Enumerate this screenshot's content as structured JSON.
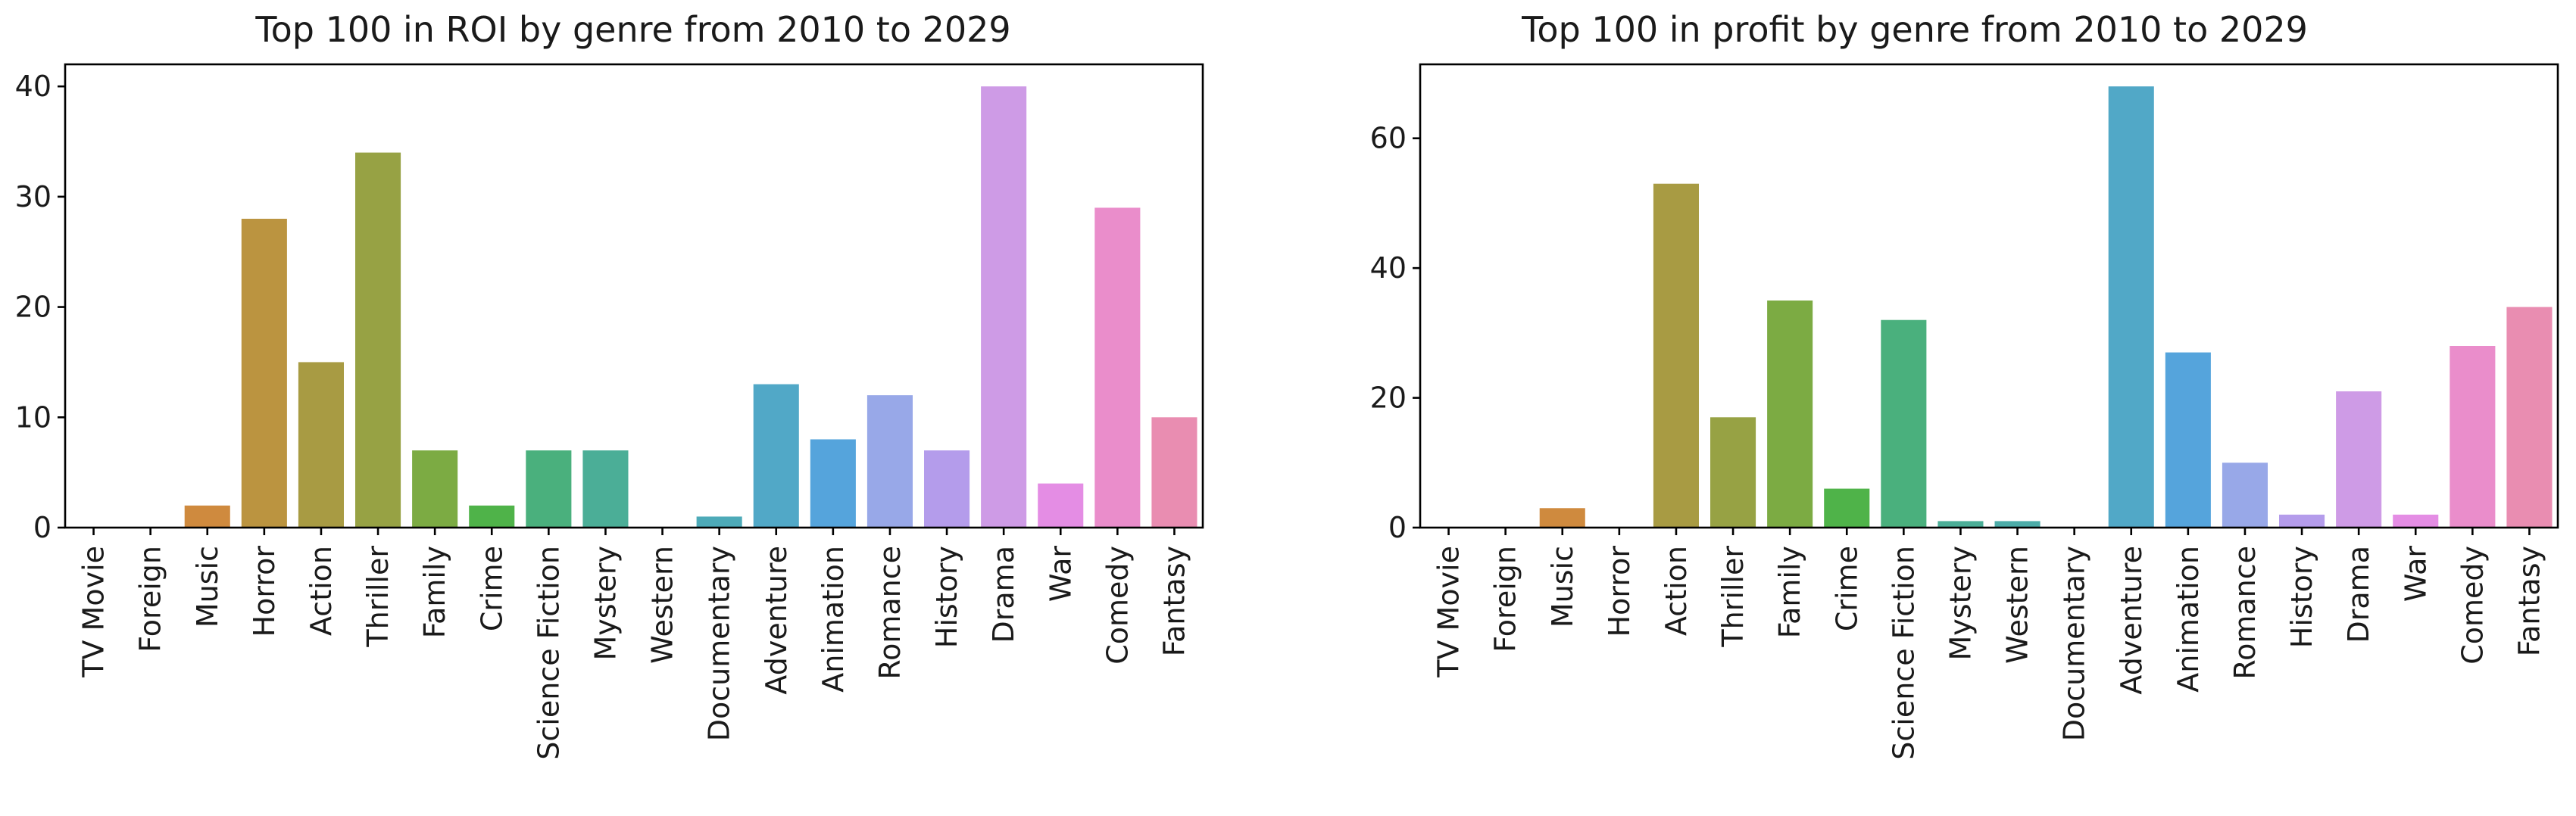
{
  "chart_data": [
    {
      "type": "bar",
      "title": "Top 100 in ROI by genre from 2010 to 2029",
      "xlabel": "",
      "ylabel": "",
      "ylim": [
        0,
        42
      ],
      "yticks": [
        0,
        10,
        20,
        30,
        40
      ],
      "grid": false,
      "categories": [
        "TV Movie",
        "Foreign",
        "Music",
        "Horror",
        "Action",
        "Thriller",
        "Family",
        "Crime",
        "Science Fiction",
        "Mystery",
        "Western",
        "Documentary",
        "Adventure",
        "Animation",
        "Romance",
        "History",
        "Drama",
        "War",
        "Comedy",
        "Fantasy"
      ],
      "values": [
        0,
        0,
        2,
        28,
        15,
        34,
        7,
        2,
        7,
        7,
        0,
        1,
        13,
        8,
        12,
        7,
        40,
        4,
        29,
        10
      ]
    },
    {
      "type": "bar",
      "title": "Top 100 in profit by genre from 2010 to 2029",
      "xlabel": "",
      "ylabel": "",
      "ylim": [
        0,
        71.4
      ],
      "yticks": [
        0,
        20,
        40,
        60
      ],
      "grid": false,
      "categories": [
        "TV Movie",
        "Foreign",
        "Music",
        "Horror",
        "Action",
        "Thriller",
        "Family",
        "Crime",
        "Science Fiction",
        "Mystery",
        "Western",
        "Documentary",
        "Adventure",
        "Animation",
        "Romance",
        "History",
        "Drama",
        "War",
        "Comedy",
        "Fantasy"
      ],
      "values": [
        0,
        0,
        3,
        0,
        53,
        17,
        35,
        6,
        32,
        1,
        1,
        0,
        68,
        27,
        10,
        2,
        21,
        2,
        28,
        34
      ]
    }
  ],
  "genre_colors": {
    "TV Movie": "#f77189",
    "Foreign": "#e5805c",
    "Music": "#cf8a3e",
    "Horror": "#bb9440",
    "Action": "#a89b43",
    "Thriller": "#97a244",
    "Family": "#7cab43",
    "Crime": "#4fb349",
    "Science Fiction": "#4ab07d",
    "Mystery": "#4bae97",
    "Western": "#4caca8",
    "Documentary": "#4daab8",
    "Adventure": "#51a8c7",
    "Animation": "#55a4dc",
    "Romance": "#98a8e8",
    "History": "#b49ceb",
    "Drama": "#ce9be6",
    "War": "#e48de4",
    "Comedy": "#ea8dcb",
    "Fantasy": "#e98db1"
  }
}
